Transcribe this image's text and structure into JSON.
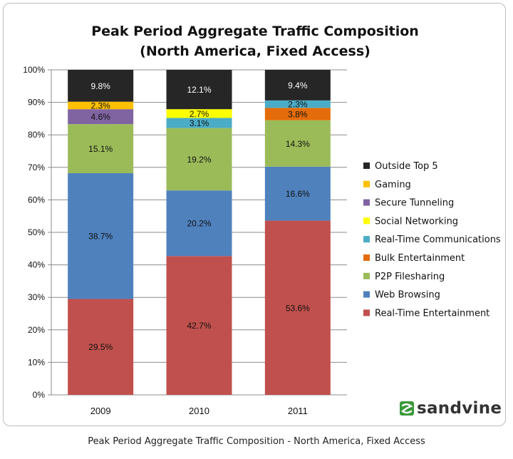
{
  "caption": "Peak Period Aggregate Traffic Composition - North America, Fixed Access",
  "logo": {
    "text": "sandvine",
    "icon": "sandvine-logo-icon",
    "color": "#3a9a3a"
  },
  "chart_data": {
    "type": "bar",
    "stacked": true,
    "title": "Peak Period Aggregate Traffic Composition",
    "subtitle": "(North America, Fixed Access)",
    "categories": [
      "2009",
      "2010",
      "2011"
    ],
    "yticks": [
      "0%",
      "10%",
      "20%",
      "30%",
      "40%",
      "50%",
      "60%",
      "70%",
      "80%",
      "90%",
      "100%"
    ],
    "ylim": [
      0,
      100
    ],
    "grid": true,
    "legend_position": "right",
    "series": [
      {
        "name": "Real-Time Entertainment",
        "color": "#c0504d",
        "values": [
          29.5,
          42.7,
          53.6
        ],
        "labels": [
          "29.5%",
          "42.7%",
          "53.6%"
        ]
      },
      {
        "name": "Web Browsing",
        "color": "#4f81bd",
        "values": [
          38.7,
          20.2,
          16.6
        ],
        "labels": [
          "38.7%",
          "20.2%",
          "16.6%"
        ]
      },
      {
        "name": "P2P Filesharing",
        "color": "#9bbb59",
        "values": [
          15.1,
          19.2,
          14.3
        ],
        "labels": [
          "15.1%",
          "19.2%",
          "14.3%"
        ]
      },
      {
        "name": "Bulk Entertainment",
        "color": "#e46c0a",
        "values": [
          0,
          0,
          3.8
        ],
        "labels": [
          "",
          "",
          "3.8%"
        ]
      },
      {
        "name": "Real-Time Communications",
        "color": "#4bacc6",
        "values": [
          0,
          3.1,
          2.3
        ],
        "labels": [
          "",
          "3.1%",
          "2.3%"
        ]
      },
      {
        "name": "Social Networking",
        "color": "#ffff00",
        "values": [
          0,
          2.7,
          0
        ],
        "labels": [
          "",
          "2.7%",
          ""
        ]
      },
      {
        "name": "Secure Tunneling",
        "color": "#8064a2",
        "values": [
          4.6,
          0,
          0
        ],
        "labels": [
          "4.6%",
          "",
          ""
        ]
      },
      {
        "name": "Gaming",
        "color": "#ffc000",
        "values": [
          2.3,
          0,
          0
        ],
        "labels": [
          "2.3%",
          "",
          ""
        ]
      },
      {
        "name": "Outside Top 5",
        "color": "#262626",
        "values": [
          9.8,
          12.1,
          9.4
        ],
        "labels": [
          "9.8%",
          "12.1%",
          "9.4%"
        ]
      }
    ]
  }
}
